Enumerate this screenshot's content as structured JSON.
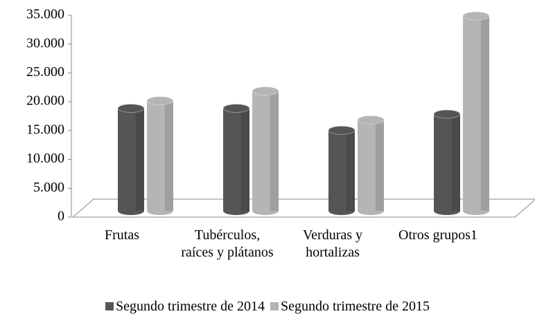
{
  "chart_data": {
    "type": "bar3d",
    "categories": [
      "Frutas",
      "Tubérculos, raíces y plátanos",
      "Verduras y hortalizas",
      "Otros grupos1"
    ],
    "series": [
      {
        "name": "Segundo trimestre de 2014",
        "color": "#555555",
        "values": [
          18500,
          18500,
          14700,
          17500
        ]
      },
      {
        "name": "Segundo trimestre de 2015",
        "color": "#b5b5b5",
        "values": [
          19800,
          21500,
          16500,
          34500
        ]
      }
    ],
    "ylim": [
      0,
      35000
    ],
    "yticks": [
      0,
      {
        "value": 5000,
        "label": "5.000"
      },
      {
        "value": 10000,
        "label": "10.000"
      },
      {
        "value": 15000,
        "label": "15.000"
      },
      {
        "value": 20000,
        "label": "20.000"
      },
      {
        "value": 25000,
        "label": "25.000"
      },
      {
        "value": 30000,
        "label": "30.000"
      },
      {
        "value": 35000,
        "label": "35.000"
      }
    ],
    "legend": "bottom"
  }
}
